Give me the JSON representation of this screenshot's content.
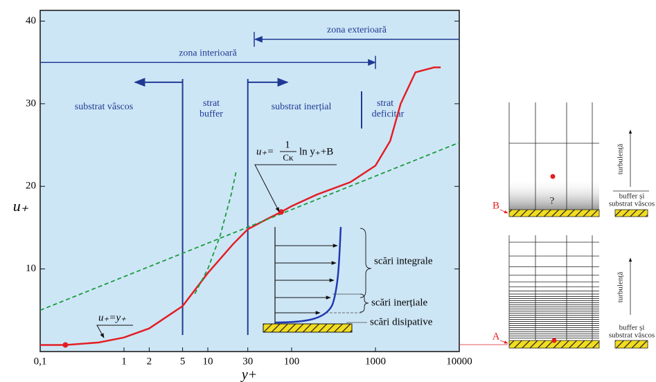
{
  "chart_data": {
    "type": "line",
    "x_label": "y+",
    "y_label": "u₊",
    "xscale": "log",
    "xlim": [
      0.1,
      10000
    ],
    "ylim": [
      0,
      41.3
    ],
    "xticks": [
      {
        "value": 0.1,
        "label": "0,1"
      },
      1,
      2,
      5,
      10,
      30,
      100,
      1000,
      10000
    ],
    "yticks": [
      10,
      20,
      30,
      40
    ],
    "background": "#cde6f6",
    "series": [
      {
        "color": "#e31e24",
        "style": "solid",
        "x": [
          0.1,
          0.2,
          0.5,
          1,
          2,
          5,
          10,
          20,
          30,
          50,
          75,
          100,
          200,
          500,
          1000,
          1500,
          2000,
          3000,
          5000,
          6000
        ],
        "values": [
          0.8,
          0.8,
          1.1,
          1.7,
          2.8,
          5.5,
          9.5,
          13,
          14.8,
          16,
          16.9,
          17.6,
          19,
          20.5,
          22.5,
          25.5,
          30,
          33.8,
          34.4,
          34.4
        ]
      },
      {
        "color": "#1a9b3c",
        "style": "dashed",
        "x": [
          7,
          10,
          14,
          19,
          22
        ],
        "values": [
          7,
          10,
          14,
          19,
          22
        ]
      },
      {
        "color": "#1a9b3c",
        "style": "dashed",
        "x": [
          0.1,
          10000
        ],
        "values": [
          5,
          25.3
        ]
      }
    ],
    "points": {
      "color": "#e31e24",
      "x": [
        0.2,
        75
      ],
      "values": [
        0.8,
        16.9
      ]
    },
    "zones": {
      "inner": "zona interioară",
      "outer": "zona exterioară"
    },
    "regions": {
      "viscous": "substrat vâscos",
      "buffer_1": "strat",
      "buffer_2": "buffer",
      "inertial": "substrat inerțial",
      "deficit_1": "strat",
      "deficit_2": "deficitar"
    },
    "formula": {
      "lhs": "u₊=",
      "num": "1",
      "den": "Cκ",
      "rhs": "ln y₊+B"
    },
    "viscous_law": "u₊=y₊",
    "scales": {
      "integral": "scări integrale",
      "inertial": "scări inerțiale",
      "dissipative": "scări disipative"
    },
    "diagram": {
      "label_b": "B",
      "label_a": "A",
      "unknown": "?",
      "turbulence_1": "turbulență",
      "turbulence_2": "turbulență",
      "buffer_1a": "buffer și",
      "buffer_1b": "substrat vâscos",
      "buffer_2a": "buffer și",
      "buffer_2b": "substrat vâscos"
    }
  }
}
